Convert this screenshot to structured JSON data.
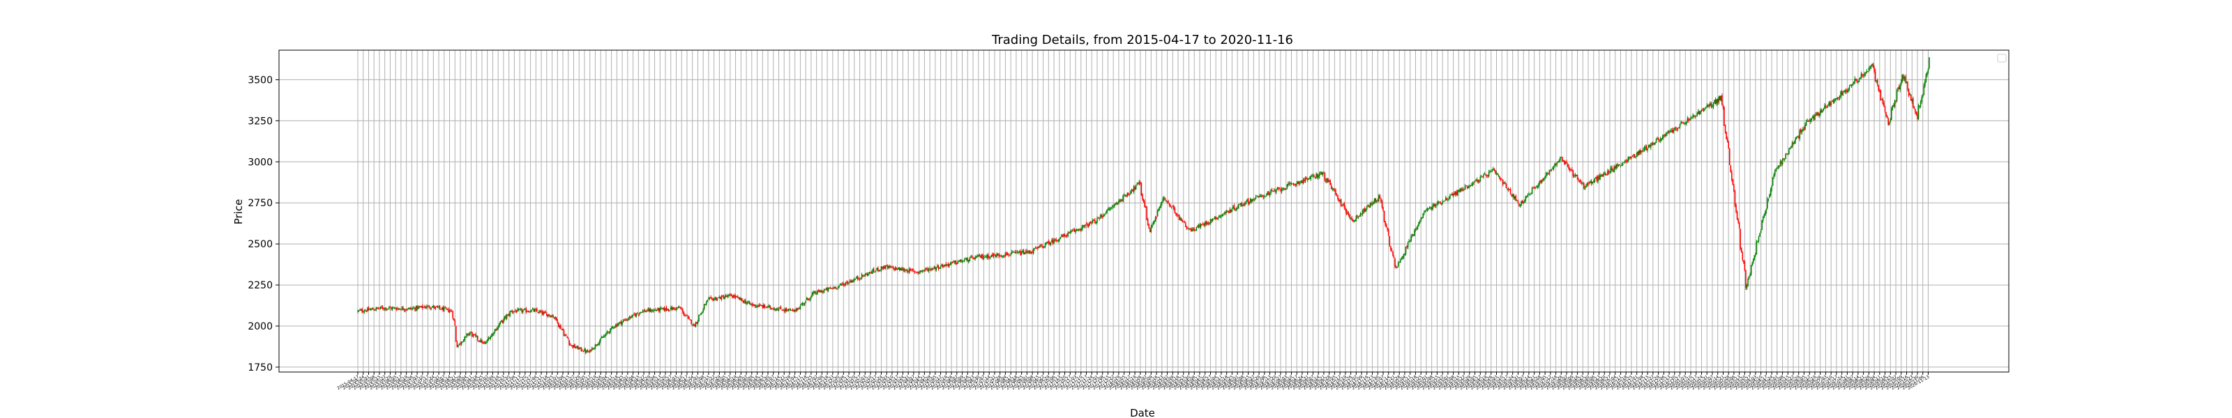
{
  "chart_data": {
    "type": "candlestick",
    "title": "Trading Details, from 2015-04-17 to 2020-11-16",
    "xlabel": "Date",
    "ylabel": "Price",
    "x_range": [
      "2015-04-17",
      "2020-11-16"
    ],
    "ylim": [
      1720,
      3680
    ],
    "y_ticks": [
      1750,
      2000,
      2250,
      2500,
      2750,
      3000,
      3250,
      3500
    ],
    "grid": true,
    "legend": "top-right",
    "colors": {
      "up": "#008000",
      "down": "#ff0000",
      "grid": "#b0b0b0",
      "axes": "#000000"
    },
    "price_path": [
      {
        "date": "2015-04-17",
        "close": 2090
      },
      {
        "date": "2015-05-20",
        "close": 2110
      },
      {
        "date": "2015-06-25",
        "close": 2105
      },
      {
        "date": "2015-07-20",
        "close": 2120
      },
      {
        "date": "2015-08-18",
        "close": 2090
      },
      {
        "date": "2015-08-25",
        "close": 1880
      },
      {
        "date": "2015-09-10",
        "close": 1960
      },
      {
        "date": "2015-09-29",
        "close": 1890
      },
      {
        "date": "2015-10-20",
        "close": 2020
      },
      {
        "date": "2015-11-03",
        "close": 2090
      },
      {
        "date": "2015-12-01",
        "close": 2095
      },
      {
        "date": "2015-12-28",
        "close": 2060
      },
      {
        "date": "2016-01-20",
        "close": 1880
      },
      {
        "date": "2016-02-11",
        "close": 1840
      },
      {
        "date": "2016-03-15",
        "close": 2000
      },
      {
        "date": "2016-04-20",
        "close": 2090
      },
      {
        "date": "2016-06-08",
        "close": 2110
      },
      {
        "date": "2016-06-27",
        "close": 2000
      },
      {
        "date": "2016-07-15",
        "close": 2160
      },
      {
        "date": "2016-08-15",
        "close": 2185
      },
      {
        "date": "2016-09-09",
        "close": 2130
      },
      {
        "date": "2016-11-04",
        "close": 2090
      },
      {
        "date": "2016-11-30",
        "close": 2200
      },
      {
        "date": "2016-12-30",
        "close": 2240
      },
      {
        "date": "2017-02-28",
        "close": 2360
      },
      {
        "date": "2017-04-13",
        "close": 2330
      },
      {
        "date": "2017-06-30",
        "close": 2420
      },
      {
        "date": "2017-09-05",
        "close": 2450
      },
      {
        "date": "2017-11-30",
        "close": 2640
      },
      {
        "date": "2018-01-26",
        "close": 2870
      },
      {
        "date": "2018-02-08",
        "close": 2580
      },
      {
        "date": "2018-02-26",
        "close": 2780
      },
      {
        "date": "2018-04-02",
        "close": 2580
      },
      {
        "date": "2018-06-15",
        "close": 2760
      },
      {
        "date": "2018-09-20",
        "close": 2930
      },
      {
        "date": "2018-10-29",
        "close": 2640
      },
      {
        "date": "2018-12-03",
        "close": 2790
      },
      {
        "date": "2018-12-24",
        "close": 2350
      },
      {
        "date": "2019-01-31",
        "close": 2700
      },
      {
        "date": "2019-04-30",
        "close": 2945
      },
      {
        "date": "2019-06-03",
        "close": 2740
      },
      {
        "date": "2019-07-26",
        "close": 3020
      },
      {
        "date": "2019-08-26",
        "close": 2850
      },
      {
        "date": "2019-10-30",
        "close": 3040
      },
      {
        "date": "2019-12-31",
        "close": 3230
      },
      {
        "date": "2020-02-19",
        "close": 3390
      },
      {
        "date": "2020-03-23",
        "close": 2240
      },
      {
        "date": "2020-04-29",
        "close": 2940
      },
      {
        "date": "2020-06-08",
        "close": 3230
      },
      {
        "date": "2020-09-02",
        "close": 3580
      },
      {
        "date": "2020-09-23",
        "close": 3240
      },
      {
        "date": "2020-10-12",
        "close": 3530
      },
      {
        "date": "2020-10-30",
        "close": 3270
      },
      {
        "date": "2020-11-16",
        "close": 3620
      }
    ]
  }
}
